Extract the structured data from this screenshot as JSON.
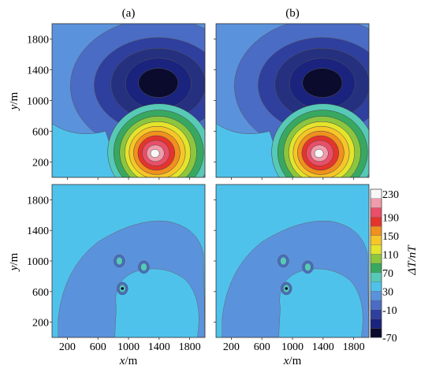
{
  "chart_data": {
    "type": "heatmap",
    "panels": [
      {
        "label": "(a)",
        "map": "anomaly"
      },
      {
        "label": "(b)",
        "map": "anomaly"
      },
      {
        "label": "",
        "map": "residual"
      },
      {
        "label": "",
        "map": "residual"
      }
    ],
    "x_axis": {
      "label_var": "x",
      "label_unit": "/m",
      "ticks": [
        200,
        600,
        1000,
        1400,
        1800
      ],
      "range": [
        0,
        2000
      ]
    },
    "y_axis": {
      "label_var": "y",
      "label_unit": "/m",
      "ticks": [
        200,
        600,
        1000,
        1400,
        1800
      ],
      "range": [
        0,
        2000
      ]
    },
    "colorbar": {
      "label": "ΔT/nT",
      "ticks": [
        230,
        190,
        150,
        110,
        70,
        30,
        -10,
        -70
      ],
      "levels": [
        -70,
        -50,
        -30,
        -10,
        10,
        30,
        50,
        70,
        90,
        110,
        130,
        150,
        170,
        190,
        210,
        230
      ],
      "colors": [
        "#0b0b2e",
        "#1a237e",
        "#2f3f9e",
        "#4a6cc4",
        "#5b92dc",
        "#4fc2ec",
        "#57c9b7",
        "#38a860",
        "#8cc63f",
        "#e4e42c",
        "#f6c628",
        "#f0901e",
        "#e5342c",
        "#e94f68",
        "#f09cab",
        "#f8f8f8"
      ]
    },
    "anomaly_sources": [
      {
        "name": "positive",
        "x": 1400,
        "y": 320,
        "peak": 230
      },
      {
        "name": "negative",
        "x": 1350,
        "y": 1230,
        "peak": -70
      }
    ]
  }
}
